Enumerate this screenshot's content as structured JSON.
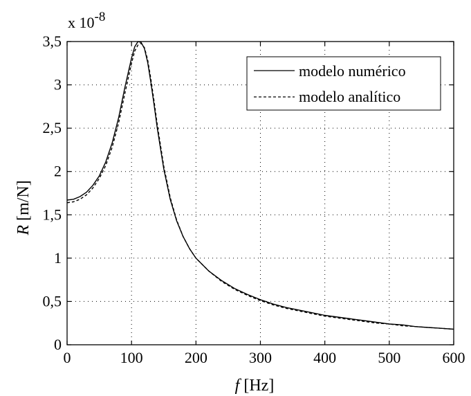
{
  "chart_data": {
    "type": "line",
    "title": "",
    "exponent_label": "x 10",
    "exponent_power": "-8",
    "xlabel_symbol": "f",
    "xlabel_unit": " [Hz]",
    "ylabel_symbol": "R",
    "ylabel_unit": " [m/N]",
    "xlim": [
      0,
      600
    ],
    "ylim": [
      0,
      3.5
    ],
    "x_ticks": [
      0,
      100,
      200,
      300,
      400,
      500,
      600
    ],
    "x_tick_labels": [
      "0",
      "100",
      "200",
      "300",
      "400",
      "500",
      "600"
    ],
    "y_ticks": [
      0,
      0.5,
      1,
      1.5,
      2,
      2.5,
      3,
      3.5
    ],
    "y_tick_labels": [
      "0",
      "0,5",
      "1",
      "1,5",
      "2",
      "2,5",
      "3",
      "3,5"
    ],
    "grid": true,
    "legend_position": "top-right",
    "series": [
      {
        "name": "modelo numérico",
        "style": "solid",
        "color": "#000000",
        "x": [
          0,
          10,
          20,
          30,
          40,
          50,
          60,
          70,
          80,
          90,
          100,
          105,
          110,
          115,
          120,
          125,
          130,
          135,
          140,
          150,
          160,
          170,
          180,
          190,
          200,
          220,
          240,
          260,
          280,
          300,
          320,
          340,
          360,
          380,
          400,
          420,
          440,
          460,
          480,
          500,
          520,
          540,
          560,
          580,
          600
        ],
        "y": [
          1.67,
          1.68,
          1.71,
          1.76,
          1.84,
          1.95,
          2.11,
          2.33,
          2.62,
          2.98,
          3.31,
          3.44,
          3.5,
          3.49,
          3.42,
          3.26,
          3.03,
          2.77,
          2.5,
          2.03,
          1.68,
          1.43,
          1.25,
          1.11,
          1.0,
          0.85,
          0.74,
          0.65,
          0.58,
          0.52,
          0.47,
          0.43,
          0.4,
          0.37,
          0.34,
          0.32,
          0.3,
          0.28,
          0.26,
          0.24,
          0.23,
          0.21,
          0.2,
          0.19,
          0.18
        ]
      },
      {
        "name": "modelo analítico",
        "style": "dashed",
        "color": "#000000",
        "x": [
          0,
          10,
          20,
          30,
          40,
          50,
          60,
          70,
          80,
          90,
          100,
          105,
          110,
          115,
          120,
          125,
          130,
          135,
          140,
          150,
          160,
          170,
          180,
          190,
          200,
          220,
          240,
          260,
          280,
          300,
          320,
          340,
          360,
          380,
          400,
          420,
          440,
          460,
          480,
          500,
          520,
          540,
          560,
          580,
          600
        ],
        "y": [
          1.64,
          1.65,
          1.68,
          1.73,
          1.81,
          1.92,
          2.07,
          2.28,
          2.56,
          2.91,
          3.25,
          3.39,
          3.46,
          3.48,
          3.43,
          3.29,
          3.07,
          2.81,
          2.54,
          2.06,
          1.7,
          1.44,
          1.25,
          1.11,
          1.0,
          0.85,
          0.73,
          0.64,
          0.57,
          0.51,
          0.46,
          0.42,
          0.39,
          0.36,
          0.33,
          0.31,
          0.29,
          0.27,
          0.25,
          0.24,
          0.22,
          0.21,
          0.2,
          0.19,
          0.18
        ]
      }
    ]
  }
}
